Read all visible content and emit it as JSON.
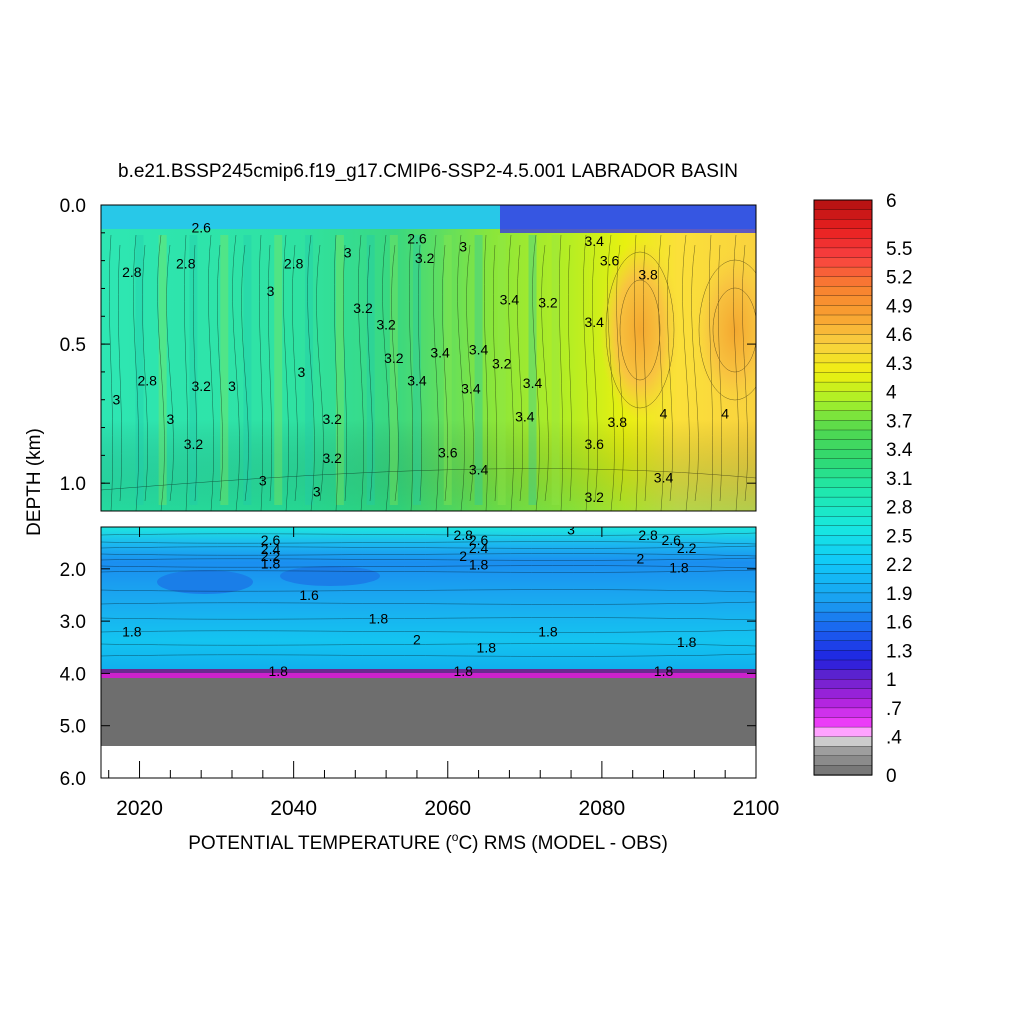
{
  "chart_data": {
    "type": "heatmap",
    "title": "b.e21.BSSP245cmip6.f19_g17.CMIP6-SSP2-4.5.001 LABRADOR BASIN",
    "xlabel_pre": "POTENTIAL TEMPERATURE (",
    "xlabel_sup": "o",
    "xlabel_post": "C) RMS (MODEL - OBS)",
    "ylabel": "DEPTH (km)",
    "x_range": [
      2015,
      2100
    ],
    "x_ticks": [
      "2020",
      "2040",
      "2060",
      "2080",
      "2100"
    ],
    "upper_y_range": [
      0.0,
      1.1
    ],
    "upper_y_ticks": [
      "0.0",
      "0.5",
      "1.0"
    ],
    "lower_y_range": [
      1.2,
      6.0
    ],
    "lower_y_ticks": [
      "2.0",
      "3.0",
      "4.0",
      "5.0",
      "6.0"
    ],
    "colorbar_range": [
      0,
      6
    ],
    "colorbar_labels": [
      "6",
      "5.5",
      "5.2",
      "4.9",
      "4.6",
      "4.3",
      "4",
      "3.7",
      "3.4",
      "3.1",
      "2.8",
      "2.5",
      "2.2",
      "1.9",
      "1.6",
      "1.3",
      "1",
      ".7",
      ".4",
      "0"
    ],
    "upper_contour_labels": [
      {
        "x": 2019,
        "y": 0.24,
        "label": "2.8"
      },
      {
        "x": 2026,
        "y": 0.21,
        "label": "2.8"
      },
      {
        "x": 2040,
        "y": 0.21,
        "label": "2.8"
      },
      {
        "x": 2028,
        "y": 0.08,
        "label": "2.6"
      },
      {
        "x": 2037,
        "y": 0.31,
        "label": "3"
      },
      {
        "x": 2047,
        "y": 0.17,
        "label": "3"
      },
      {
        "x": 2049,
        "y": 0.37,
        "label": "3.2"
      },
      {
        "x": 2052,
        "y": 0.43,
        "label": "3.2"
      },
      {
        "x": 2053,
        "y": 0.55,
        "label": "3.2"
      },
      {
        "x": 2062,
        "y": 0.15,
        "label": "3"
      },
      {
        "x": 2057,
        "y": 0.19,
        "label": "3.2"
      },
      {
        "x": 2059,
        "y": 0.53,
        "label": "3.4"
      },
      {
        "x": 2056,
        "y": 0.63,
        "label": "3.4"
      },
      {
        "x": 2068,
        "y": 0.34,
        "label": "3.4"
      },
      {
        "x": 2073,
        "y": 0.35,
        "label": "3.2"
      },
      {
        "x": 2064,
        "y": 0.52,
        "label": "3.4"
      },
      {
        "x": 2063,
        "y": 0.66,
        "label": "3.4"
      },
      {
        "x": 2067,
        "y": 0.57,
        "label": "3.2"
      },
      {
        "x": 2071,
        "y": 0.64,
        "label": "3.4"
      },
      {
        "x": 2070,
        "y": 0.76,
        "label": "3.4"
      },
      {
        "x": 2079,
        "y": 0.42,
        "label": "3.4"
      },
      {
        "x": 2028,
        "y": 0.65,
        "label": "3.2"
      },
      {
        "x": 2032,
        "y": 0.65,
        "label": "3"
      },
      {
        "x": 2041,
        "y": 0.6,
        "label": "3"
      },
      {
        "x": 2021,
        "y": 0.63,
        "label": "2.8"
      },
      {
        "x": 2017,
        "y": 0.7,
        "label": "3"
      },
      {
        "x": 2024,
        "y": 0.77,
        "label": "3"
      },
      {
        "x": 2027,
        "y": 0.86,
        "label": "3.2"
      },
      {
        "x": 2045,
        "y": 0.77,
        "label": "3.2"
      },
      {
        "x": 2045,
        "y": 0.91,
        "label": "3.2"
      },
      {
        "x": 2036,
        "y": 0.99,
        "label": "3"
      },
      {
        "x": 2043,
        "y": 1.03,
        "label": "3"
      },
      {
        "x": 2060,
        "y": 0.89,
        "label": "3.6"
      },
      {
        "x": 2064,
        "y": 0.95,
        "label": "3.4"
      },
      {
        "x": 2079,
        "y": 0.86,
        "label": "3.6"
      },
      {
        "x": 2082,
        "y": 0.78,
        "label": "3.8"
      },
      {
        "x": 2088,
        "y": 0.75,
        "label": "4"
      },
      {
        "x": 2096,
        "y": 0.75,
        "label": "4"
      },
      {
        "x": 2088,
        "y": 0.98,
        "label": "3.4"
      },
      {
        "x": 2079,
        "y": 1.05,
        "label": "3.2"
      },
      {
        "x": 2086,
        "y": 0.25,
        "label": "3.8"
      },
      {
        "x": 2081,
        "y": 0.2,
        "label": "3.6"
      },
      {
        "x": 2056,
        "y": 0.12,
        "label": "2.6"
      },
      {
        "x": 2079,
        "y": 0.13,
        "label": "3.4"
      }
    ],
    "lower_contour_labels": [
      {
        "x": 2037,
        "y": 1.45,
        "label": "2.6"
      },
      {
        "x": 2037,
        "y": 1.62,
        "label": "2.4"
      },
      {
        "x": 2037,
        "y": 1.75,
        "label": "2.2"
      },
      {
        "x": 2037,
        "y": 1.9,
        "label": "1.8"
      },
      {
        "x": 2062,
        "y": 1.35,
        "label": "2.8"
      },
      {
        "x": 2064,
        "y": 1.45,
        "label": "2.6"
      },
      {
        "x": 2064,
        "y": 1.6,
        "label": "2.4"
      },
      {
        "x": 2062,
        "y": 1.75,
        "label": "2"
      },
      {
        "x": 2064,
        "y": 1.92,
        "label": "1.8"
      },
      {
        "x": 2076,
        "y": 1.25,
        "label": "3"
      },
      {
        "x": 2086,
        "y": 1.35,
        "label": "2.8"
      },
      {
        "x": 2089,
        "y": 1.45,
        "label": "2.6"
      },
      {
        "x": 2091,
        "y": 1.6,
        "label": "2.2"
      },
      {
        "x": 2085,
        "y": 1.8,
        "label": "2"
      },
      {
        "x": 2090,
        "y": 1.97,
        "label": "1.8"
      },
      {
        "x": 2042,
        "y": 2.5,
        "label": "1.6"
      },
      {
        "x": 2051,
        "y": 2.95,
        "label": "1.8"
      },
      {
        "x": 2019,
        "y": 3.2,
        "label": "1.8"
      },
      {
        "x": 2056,
        "y": 3.35,
        "label": "2"
      },
      {
        "x": 2065,
        "y": 3.5,
        "label": "1.8"
      },
      {
        "x": 2073,
        "y": 3.2,
        "label": "1.8"
      },
      {
        "x": 2091,
        "y": 3.4,
        "label": "1.8"
      },
      {
        "x": 2038,
        "y": 3.95,
        "label": "1.8"
      },
      {
        "x": 2062,
        "y": 3.95,
        "label": "1.8"
      },
      {
        "x": 2088,
        "y": 3.95,
        "label": "1.8"
      }
    ]
  }
}
